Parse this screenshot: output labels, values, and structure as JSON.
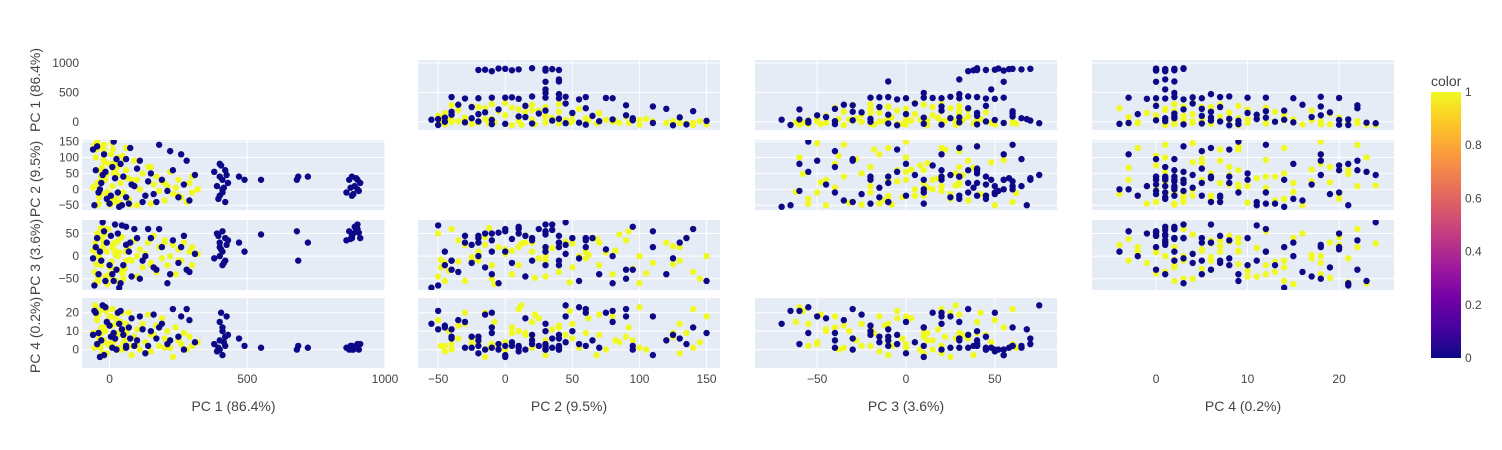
{
  "chart_data": {
    "type": "scatter",
    "kind": "scatter-matrix",
    "diagonal_visible": false,
    "plot_background": "#E5ECF6",
    "grid_color": "#ffffff",
    "dimensions": [
      {
        "name": "PC 1 (86.4%)",
        "range": [
          -100,
          1000
        ],
        "ticks": [
          0,
          500,
          1000
        ],
        "tick_labels": [
          "0",
          "500",
          "1000"
        ],
        "row_range": [
          -140,
          1050
        ],
        "row_ticks": [
          0,
          500,
          1000
        ],
        "row_tick_labels": [
          "0",
          "500",
          "1000"
        ]
      },
      {
        "name": "PC 2 (9.5%)",
        "range": [
          -65,
          160
        ],
        "ticks": [
          -50,
          0,
          50,
          100,
          150
        ],
        "tick_labels": [
          "−50",
          "0",
          "50",
          "100",
          "150"
        ],
        "row_range": [
          -65,
          155
        ],
        "row_ticks": [
          -50,
          0,
          50,
          100,
          150
        ],
        "row_tick_labels": [
          "−50",
          "0",
          "50",
          "100",
          "150"
        ]
      },
      {
        "name": "PC 3 (3.6%)",
        "range": [
          -85,
          85
        ],
        "ticks": [
          -50,
          0,
          50
        ],
        "tick_labels": [
          "−50",
          "0",
          "50"
        ],
        "row_range": [
          -75,
          80
        ],
        "row_ticks": [
          -50,
          0,
          50
        ],
        "row_tick_labels": [
          "−50",
          "0",
          "50"
        ]
      },
      {
        "name": "PC 4 (0.2%)",
        "range": [
          -7,
          26
        ],
        "ticks": [
          0,
          10,
          20
        ],
        "tick_labels": [
          "0",
          "10",
          "20"
        ],
        "row_range": [
          -10,
          28
        ],
        "row_ticks": [
          0,
          10,
          20
        ],
        "row_tick_labels": [
          "0",
          "10",
          "20"
        ]
      }
    ],
    "color": {
      "title": "color",
      "range": [
        0,
        1
      ],
      "ticks": [
        0,
        0.2,
        0.4,
        0.6,
        0.8,
        1
      ],
      "tick_labels": [
        "0",
        "0.2",
        "0.4",
        "0.6",
        "0.8",
        "1"
      ],
      "colorscale": [
        "#0d0887",
        "#46039f",
        "#7201a8",
        "#9c179e",
        "#bd3786",
        "#d8576b",
        "#ed7953",
        "#fb9f3a",
        "#fdca26",
        "#f0f921"
      ]
    },
    "series": [
      {
        "color_value": 1,
        "hex": "#f0f921",
        "description": "yellow points (color = 1)",
        "points": [
          [
            -40,
            -45,
            -55,
            2
          ],
          [
            -30,
            40,
            -20,
            12
          ],
          [
            -20,
            120,
            30,
            5
          ],
          [
            -10,
            -20,
            10,
            -2
          ],
          [
            0,
            80,
            -40,
            18
          ],
          [
            10,
            10,
            20,
            22
          ],
          [
            20,
            -40,
            -30,
            6
          ],
          [
            30,
            100,
            0,
            1
          ],
          [
            40,
            20,
            40,
            15
          ],
          [
            50,
            -10,
            -50,
            3
          ],
          [
            60,
            60,
            10,
            9
          ],
          [
            70,
            -30,
            25,
            20
          ],
          [
            80,
            30,
            -10,
            -3
          ],
          [
            90,
            90,
            35,
            7
          ],
          [
            100,
            -50,
            -45,
            11
          ],
          [
            110,
            0,
            15,
            0
          ],
          [
            120,
            50,
            -25,
            14
          ],
          [
            130,
            -20,
            5,
            4
          ],
          [
            140,
            70,
            30,
            19
          ],
          [
            150,
            -45,
            -15,
            -1
          ],
          [
            160,
            15,
            45,
            8
          ],
          [
            170,
            40,
            -35,
            13
          ],
          [
            180,
            -5,
            20,
            2
          ],
          [
            190,
            25,
            -5,
            17
          ],
          [
            200,
            -35,
            35,
            6
          ],
          [
            210,
            10,
            -20,
            10
          ],
          [
            220,
            55,
            0,
            1
          ],
          [
            230,
            -15,
            25,
            -4
          ],
          [
            240,
            5,
            -40,
            12
          ],
          [
            250,
            30,
            15,
            5
          ],
          [
            260,
            -25,
            -10,
            3
          ],
          [
            270,
            15,
            30,
            9
          ],
          [
            280,
            -40,
            -30,
            0
          ],
          [
            290,
            20,
            10,
            7
          ],
          [
            300,
            -10,
            -20,
            2
          ],
          [
            320,
            0,
            5,
            4
          ],
          [
            -50,
            100,
            -60,
            23
          ],
          [
            -45,
            -50,
            50,
            16
          ],
          [
            -35,
            60,
            -5,
            21
          ],
          [
            -25,
            130,
            20,
            -2
          ],
          [
            -15,
            30,
            -45,
            10
          ],
          [
            -5,
            -40,
            60,
            3
          ],
          [
            5,
            110,
            -15,
            18
          ],
          [
            15,
            50,
            28,
            6
          ],
          [
            25,
            -30,
            -55,
            14
          ],
          [
            35,
            75,
            8,
            0
          ],
          [
            45,
            -15,
            42,
            20
          ],
          [
            55,
            95,
            -28,
            5
          ],
          [
            65,
            35,
            18,
            11
          ],
          [
            75,
            -48,
            -8,
            2
          ],
          [
            -60,
            5,
            12,
            9
          ],
          [
            -55,
            140,
            -35,
            1
          ],
          [
            -28,
            68,
            38,
            -3
          ],
          [
            -8,
            -8,
            -62,
            15
          ],
          [
            12,
            125,
            22,
            7
          ],
          [
            -42,
            22,
            -48,
            19
          ],
          [
            -18,
            85,
            48,
            4
          ],
          [
            8,
            -35,
            -12,
            13
          ],
          [
            28,
            45,
            32,
            8
          ],
          [
            48,
            105,
            -38,
            0
          ],
          [
            -52,
            12,
            28,
            24
          ],
          [
            -38,
            -25,
            -2,
            6
          ],
          [
            -22,
            92,
            55,
            12
          ],
          [
            2,
            -48,
            -25,
            2
          ],
          [
            22,
            62,
            3,
            17
          ],
          [
            -48,
            125,
            -18,
            9
          ],
          [
            -32,
            -12,
            62,
            1
          ],
          [
            -12,
            48,
            -58,
            21
          ],
          [
            18,
            82,
            12,
            5
          ],
          [
            38,
            -42,
            -32,
            10
          ],
          [
            100,
            30,
            0,
            3
          ],
          [
            150,
            70,
            -20,
            8
          ],
          [
            200,
            20,
            30,
            1
          ],
          [
            250,
            -20,
            -10,
            6
          ],
          [
            300,
            40,
            20,
            2
          ],
          [
            -45,
            150,
            0,
            18
          ],
          [
            -20,
            140,
            60,
            22
          ],
          [
            60,
            130,
            -10,
            14
          ],
          [
            -30,
            135,
            40,
            9
          ],
          [
            10,
            145,
            -50,
            4
          ]
        ]
      },
      {
        "color_value": 0,
        "hex": "#0d0887",
        "description": "dark blue points (color = 0)",
        "points": [
          [
            -30,
            20,
            -10,
            5
          ],
          [
            -10,
            -30,
            30,
            15
          ],
          [
            10,
            70,
            -40,
            1
          ],
          [
            30,
            -10,
            50,
            20
          ],
          [
            50,
            40,
            -20,
            8
          ],
          [
            70,
            -45,
            10,
            12
          ],
          [
            90,
            10,
            60,
            2
          ],
          [
            110,
            90,
            -50,
            18
          ],
          [
            130,
            -20,
            0,
            -2
          ],
          [
            150,
            50,
            40,
            10
          ],
          [
            170,
            -40,
            -30,
            6
          ],
          [
            190,
            30,
            20,
            14
          ],
          [
            210,
            -5,
            -60,
            3
          ],
          [
            230,
            60,
            35,
            22
          ],
          [
            250,
            -25,
            -15,
            7
          ],
          [
            270,
            15,
            45,
            0
          ],
          [
            290,
            -35,
            -35,
            16
          ],
          [
            310,
            45,
            5,
            4
          ],
          [
            -50,
            60,
            20,
            20
          ],
          [
            -40,
            -10,
            -40,
            9
          ],
          [
            -20,
            110,
            55,
            -3
          ],
          [
            0,
            -45,
            -20,
            13
          ],
          [
            20,
            35,
            70,
            6
          ],
          [
            40,
            80,
            -60,
            21
          ],
          [
            60,
            -25,
            25,
            1
          ],
          [
            80,
            15,
            -45,
            17
          ],
          [
            100,
            65,
            40,
            5
          ],
          [
            120,
            -40,
            -10,
            11
          ],
          [
            140,
            25,
            60,
            2
          ],
          [
            160,
            -15,
            -25,
            19
          ],
          [
            -60,
            125,
            -5,
            8
          ],
          [
            -35,
            0,
            10,
            -4
          ],
          [
            -15,
            55,
            -55,
            23
          ],
          [
            5,
            -20,
            45,
            7
          ],
          [
            25,
            95,
            -30,
            0
          ],
          [
            400,
            -20,
            30,
            5
          ],
          [
            410,
            30,
            -20,
            10
          ],
          [
            420,
            60,
            40,
            2
          ],
          [
            400,
            80,
            0,
            15
          ],
          [
            390,
            10,
            50,
            -1
          ],
          [
            420,
            -40,
            -10,
            7
          ],
          [
            400,
            40,
            20,
            0
          ],
          [
            410,
            -10,
            10,
            12
          ],
          [
            380,
            55,
            -5,
            3
          ],
          [
            430,
            20,
            35,
            8
          ],
          [
            405,
            75,
            15,
            20
          ],
          [
            395,
            -30,
            45,
            1
          ],
          [
            415,
            5,
            -15,
            4
          ],
          [
            425,
            45,
            25,
            18
          ],
          [
            410,
            0,
            55,
            -3
          ],
          [
            470,
            40,
            30,
            6
          ],
          [
            490,
            30,
            10,
            2
          ],
          [
            550,
            30,
            48,
            1
          ],
          [
            680,
            30,
            55,
            0
          ],
          [
            685,
            40,
            -10,
            2
          ],
          [
            720,
            40,
            30,
            1
          ],
          [
            870,
            30,
            55,
            0
          ],
          [
            880,
            -20,
            40,
            2
          ],
          [
            890,
            10,
            65,
            1
          ],
          [
            900,
            30,
            70,
            3
          ],
          [
            880,
            40,
            45,
            0
          ],
          [
            900,
            0,
            60,
            2
          ],
          [
            860,
            -10,
            35,
            1
          ],
          [
            910,
            20,
            40,
            3
          ],
          [
            885,
            -15,
            50,
            0
          ],
          [
            895,
            35,
            58,
            1
          ],
          [
            875,
            5,
            38,
            2
          ],
          [
            905,
            -5,
            52,
            0
          ],
          [
            180,
            140,
            60,
            12
          ],
          [
            220,
            120,
            -40,
            5
          ],
          [
            260,
            110,
            20,
            18
          ],
          [
            -45,
            135,
            40,
            3
          ],
          [
            15,
            150,
            -55,
            9
          ],
          [
            -25,
            45,
            75,
            24
          ],
          [
            35,
            -55,
            -70,
            14
          ],
          [
            60,
            95,
            65,
            2
          ],
          [
            -55,
            -50,
            -65,
            21
          ],
          [
            75,
            130,
            30,
            6
          ],
          [
            45,
            -50,
            68,
            11
          ],
          [
            280,
            90,
            -30,
            22
          ]
        ]
      }
    ]
  }
}
